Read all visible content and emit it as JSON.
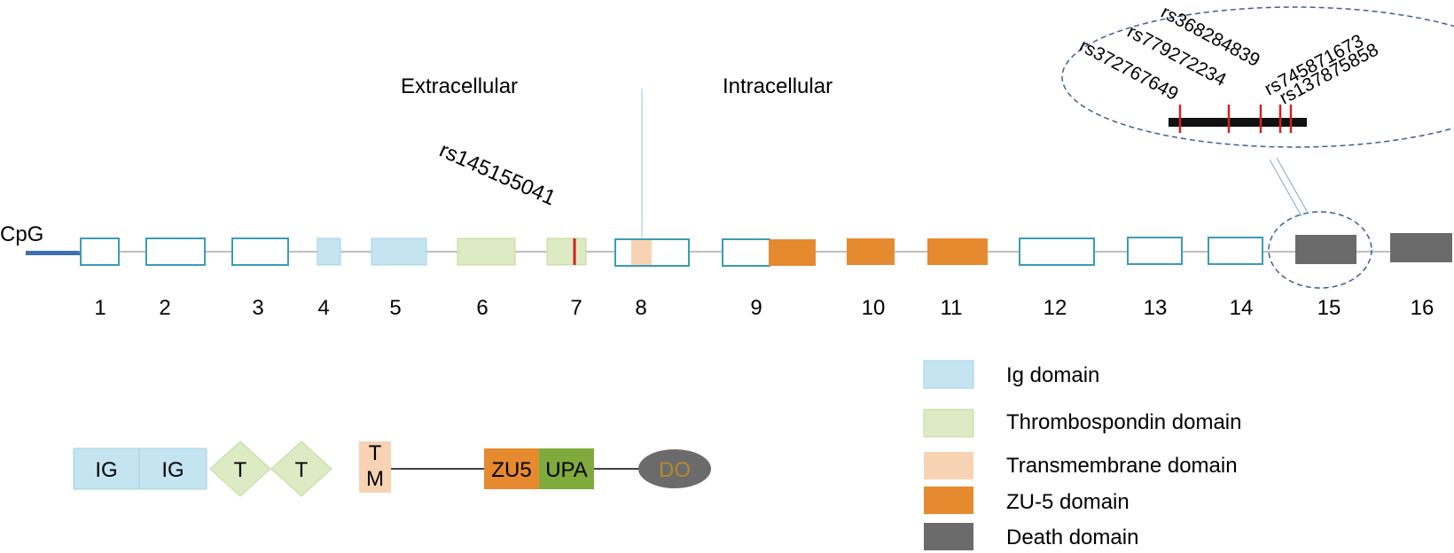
{
  "gene": {
    "cpg_label": "CpG",
    "region_labels": {
      "extracellular": "Extracellular",
      "intracellular": "Intracellular"
    },
    "exons": [
      {
        "number": "1",
        "domain": "none"
      },
      {
        "number": "2",
        "domain": "none"
      },
      {
        "number": "3",
        "domain": "none"
      },
      {
        "number": "4",
        "domain": "ig"
      },
      {
        "number": "5",
        "domain": "ig"
      },
      {
        "number": "6",
        "domain": "thrombospondin"
      },
      {
        "number": "7",
        "domain": "thrombospondin"
      },
      {
        "number": "8",
        "domain": "mixed-transmembrane"
      },
      {
        "number": "9",
        "domain": "mixed-zu5"
      },
      {
        "number": "10",
        "domain": "zu5"
      },
      {
        "number": "11",
        "domain": "zu5"
      },
      {
        "number": "12",
        "domain": "none"
      },
      {
        "number": "13",
        "domain": "none"
      },
      {
        "number": "14",
        "domain": "none"
      },
      {
        "number": "15",
        "domain": "death"
      },
      {
        "number": "16",
        "domain": "death"
      }
    ],
    "exon7_snp": "rs145155041",
    "zoom_snps": [
      "rs372767649",
      "rs779272234",
      "rs368284839",
      "rs745871673",
      "rs137875858"
    ]
  },
  "protein": {
    "domains": [
      {
        "label": "IG",
        "type": "ig"
      },
      {
        "label": "IG",
        "type": "ig"
      },
      {
        "label": "T",
        "type": "thrombospondin"
      },
      {
        "label": "T",
        "type": "thrombospondin"
      },
      {
        "label": "T",
        "type": "transmembrane",
        "label2": "M"
      },
      {
        "label": "ZU5",
        "type": "zu5"
      },
      {
        "label": "UPA",
        "type": "upa"
      },
      {
        "label": "DO",
        "type": "death"
      }
    ]
  },
  "legend": [
    {
      "label": "Ig domain",
      "color": "#c5e4f1"
    },
    {
      "label": "Thrombospondin domain",
      "color": "#dcebc3"
    },
    {
      "label": "Transmembrane domain",
      "color": "#f8d3b3"
    },
    {
      "label": "ZU-5 domain",
      "color": "#e58a2f"
    },
    {
      "label": "Death domain",
      "color": "#6b6b6b"
    }
  ],
  "colors": {
    "exon_outline": "#3a9cb6",
    "snp_marker": "#d22020",
    "cpg_bar": "#3f6fae",
    "upa": "#7fab3c",
    "death_text": "#b48a2c"
  }
}
